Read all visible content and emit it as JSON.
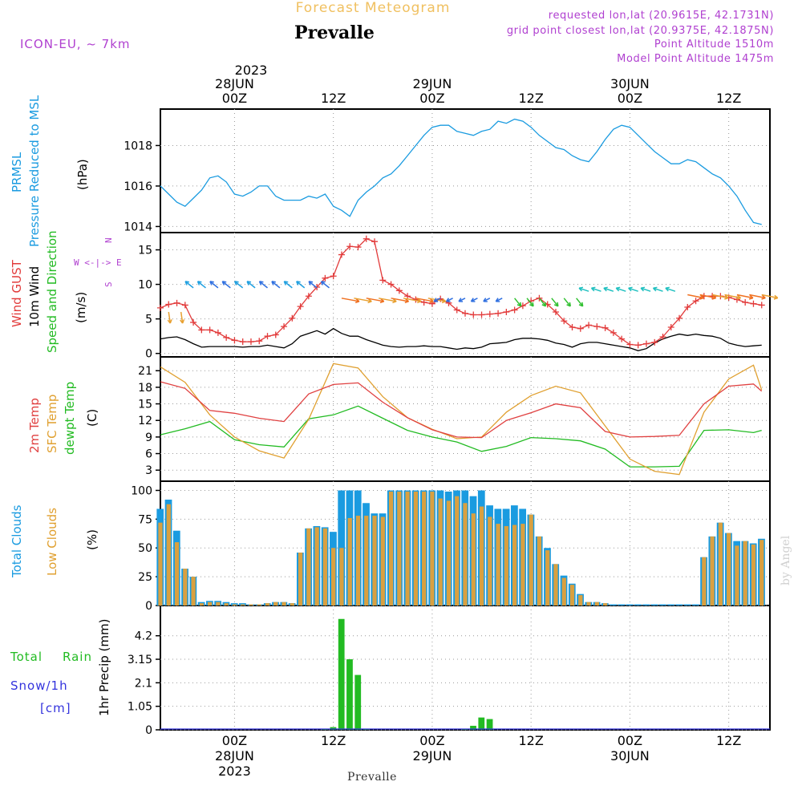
{
  "header": {
    "product": "Forecast Meteogram",
    "location": "Prevalle",
    "model": "ICON-EU, ~ 7km",
    "requested": "requested lon,lat (20.9615E, 42.1731N)",
    "grid_point": "grid point closest lon,lat (20.9375E, 42.1875N)",
    "point_alt": "Point Altitude 1510m",
    "model_alt": "Model Point Altitude 1475m",
    "footer_location": "Prevalle",
    "watermark": "by Angel"
  },
  "time_axis": {
    "top_year": "2023",
    "top_labels": [
      {
        "line1": "28JUN",
        "line2": "00Z"
      },
      {
        "line1": "",
        "line2": "12Z"
      },
      {
        "line1": "29JUN",
        "line2": "00Z"
      },
      {
        "line1": "",
        "line2": "12Z"
      },
      {
        "line1": "30JUN",
        "line2": "00Z"
      },
      {
        "line1": "",
        "line2": "12Z"
      }
    ],
    "bottom_labels": [
      {
        "line1": "00Z",
        "line2": "28JUN",
        "line3": "2023"
      },
      {
        "line1": "12Z",
        "line2": "",
        "line3": ""
      },
      {
        "line1": "00Z",
        "line2": "29JUN",
        "line3": ""
      },
      {
        "line1": "12Z",
        "line2": "",
        "line3": ""
      },
      {
        "line1": "00Z",
        "line2": "30JUN",
        "line3": ""
      },
      {
        "line1": "12Z",
        "line2": "",
        "line3": ""
      }
    ],
    "hours": [
      -9,
      65
    ]
  },
  "panel_labels": {
    "pressure": {
      "l1": "PRMSL",
      "l2": "Pressure Reduced to MSL",
      "unit": "(hPa)"
    },
    "wind": {
      "l1": "Wind GUST",
      "l2": "10m Wind",
      "l3": "Speed and Direction",
      "unit": "(m/s)",
      "compass": [
        "N",
        "W <-|-> E",
        "S"
      ]
    },
    "temp": {
      "l1": "2m Temp",
      "l2": "SFC Temp",
      "l3": "dewpt Temp",
      "unit": "(C)"
    },
    "clouds": {
      "l1": "Total Clouds",
      "l2": "Low Clouds",
      "unit": "(%)"
    },
    "precip": {
      "l1": "Total",
      "l1b": "Rain",
      "l2": "Snow/1h",
      "l3": "[cm]",
      "unit": "1hr Precip (mm)"
    }
  },
  "colors": {
    "pressure": "#1a9be0",
    "gust": "#e23b3b",
    "wind": "#000000",
    "t2m": "#e04040",
    "sfc": "#e0a030",
    "dew": "#22bb22",
    "total_clouds": "#1a9be0",
    "low_clouds": "#d9a040",
    "rain": "#22bb22",
    "snow": "#3333dd",
    "title_orange": "#f0c060",
    "meta_purple": "#b040d0"
  },
  "chart_data": [
    {
      "type": "line",
      "panel": "pressure",
      "ylim": [
        1013.7,
        1019.8
      ],
      "yticks": [
        "1014",
        "1016",
        "1018"
      ],
      "ytick_values": [
        1014,
        1016,
        1018
      ],
      "series": [
        {
          "name": "PRMSL",
          "x": [
            -9,
            -8,
            -7,
            -6,
            -5,
            -4,
            -3,
            -2,
            -1,
            0,
            1,
            2,
            3,
            4,
            5,
            6,
            7,
            8,
            9,
            10,
            11,
            12,
            13,
            14,
            15,
            16,
            17,
            18,
            19,
            20,
            21,
            22,
            23,
            24,
            25,
            26,
            27,
            28,
            29,
            30,
            31,
            32,
            33,
            34,
            35,
            36,
            37,
            38,
            39,
            40,
            41,
            42,
            43,
            44,
            45,
            46,
            47,
            48,
            49,
            50,
            51,
            52,
            53,
            54,
            55,
            56,
            57,
            58,
            59,
            60,
            61,
            62,
            63,
            64
          ],
          "values": [
            1016.0,
            1015.6,
            1015.2,
            1015.0,
            1015.4,
            1015.8,
            1016.4,
            1016.5,
            1016.2,
            1015.6,
            1015.5,
            1015.7,
            1016.0,
            1016.0,
            1015.5,
            1015.3,
            1015.3,
            1015.3,
            1015.5,
            1015.4,
            1015.6,
            1015.0,
            1014.8,
            1014.5,
            1015.3,
            1015.7,
            1016.0,
            1016.4,
            1016.6,
            1017.0,
            1017.5,
            1018.0,
            1018.5,
            1018.9,
            1019.0,
            1019.0,
            1018.7,
            1018.6,
            1018.5,
            1018.7,
            1018.8,
            1019.2,
            1019.1,
            1019.3,
            1019.2,
            1018.9,
            1018.5,
            1018.2,
            1017.9,
            1017.8,
            1017.5,
            1017.3,
            1017.2,
            1017.7,
            1018.3,
            1018.8,
            1019.0,
            1018.9,
            1018.5,
            1018.1,
            1017.7,
            1017.4,
            1017.1,
            1017.1,
            1017.3,
            1017.2,
            1016.9,
            1016.6,
            1016.4,
            1016.0,
            1015.5,
            1014.8,
            1014.2,
            1014.1
          ]
        }
      ]
    },
    {
      "type": "line",
      "panel": "wind",
      "ylim": [
        -0.5,
        17.5
      ],
      "yticks": [
        "0",
        "5",
        "10",
        "15"
      ],
      "ytick_values": [
        0,
        5,
        10,
        15
      ],
      "series": [
        {
          "name": "Wind GUST",
          "x": [
            -9,
            -8,
            -7,
            -6,
            -5,
            -4,
            -3,
            -2,
            -1,
            0,
            1,
            2,
            3,
            4,
            5,
            6,
            7,
            8,
            9,
            10,
            11,
            12,
            13,
            14,
            15,
            16,
            17,
            18,
            19,
            20,
            21,
            22,
            23,
            24,
            25,
            26,
            27,
            28,
            29,
            30,
            31,
            32,
            33,
            34,
            35,
            36,
            37,
            38,
            39,
            40,
            41,
            42,
            43,
            44,
            45,
            46,
            47,
            48,
            49,
            50,
            51,
            52,
            53,
            54,
            55,
            56,
            57,
            58,
            59,
            60,
            61,
            62,
            63,
            64
          ],
          "values": [
            6.6,
            7.1,
            7.3,
            7.0,
            4.5,
            3.4,
            3.4,
            3.0,
            2.3,
            1.9,
            1.7,
            1.7,
            1.8,
            2.5,
            2.7,
            3.9,
            5.1,
            6.8,
            8.3,
            9.6,
            10.9,
            11.2,
            14.3,
            15.5,
            15.4,
            16.6,
            16.2,
            10.6,
            10.0,
            9.1,
            8.3,
            7.8,
            7.4,
            7.2,
            7.9,
            7.3,
            6.3,
            5.8,
            5.6,
            5.6,
            5.7,
            5.8,
            6.0,
            6.3,
            6.9,
            7.6,
            8.0,
            7.1,
            6.0,
            4.7,
            3.8,
            3.6,
            4.1,
            3.9,
            3.7,
            3.0,
            2.1,
            1.3,
            1.2,
            1.4,
            1.6,
            2.4,
            3.8,
            5.1,
            6.7,
            7.6,
            8.3,
            8.3,
            8.3,
            8.1,
            7.8,
            7.4,
            7.2,
            7.0
          ]
        },
        {
          "name": "10m Wind",
          "x": [
            -9,
            -8,
            -7,
            -6,
            -5,
            -4,
            -3,
            -2,
            -1,
            0,
            1,
            2,
            3,
            4,
            5,
            6,
            7,
            8,
            9,
            10,
            11,
            12,
            13,
            14,
            15,
            16,
            17,
            18,
            19,
            20,
            21,
            22,
            23,
            24,
            25,
            26,
            27,
            28,
            29,
            30,
            31,
            32,
            33,
            34,
            35,
            36,
            37,
            38,
            39,
            40,
            41,
            42,
            43,
            44,
            45,
            46,
            47,
            48,
            49,
            50,
            51,
            52,
            53,
            54,
            55,
            56,
            57,
            58,
            59,
            60,
            61,
            62,
            63,
            64
          ],
          "values": [
            2.1,
            2.3,
            2.4,
            2.0,
            1.4,
            0.9,
            1.0,
            1.0,
            1.0,
            1.0,
            0.9,
            1.0,
            1.0,
            1.2,
            1.0,
            0.8,
            1.4,
            2.5,
            2.9,
            3.3,
            2.8,
            3.6,
            2.9,
            2.5,
            2.5,
            2.0,
            1.6,
            1.2,
            1.0,
            0.9,
            1.0,
            1.0,
            1.1,
            1.0,
            1.0,
            0.8,
            0.6,
            0.8,
            0.7,
            0.9,
            1.4,
            1.5,
            1.6,
            2.0,
            2.2,
            2.2,
            2.1,
            1.9,
            1.5,
            1.3,
            0.9,
            1.4,
            1.6,
            1.6,
            1.4,
            1.2,
            1.0,
            0.8,
            0.4,
            0.7,
            1.5,
            2.1,
            2.5,
            2.8,
            2.6,
            2.8,
            2.6,
            2.5,
            2.2,
            1.5,
            1.2,
            1.0,
            1.1,
            1.2
          ]
        }
      ]
    },
    {
      "type": "line",
      "panel": "temperature",
      "ylim": [
        1.0,
        23.5
      ],
      "yticks": [
        "3",
        "6",
        "9",
        "12",
        "15",
        "18",
        "21"
      ],
      "ytick_values": [
        3,
        6,
        9,
        12,
        15,
        18,
        21
      ],
      "series": [
        {
          "name": "2m Temp",
          "x": [
            -9,
            -6,
            -3,
            0,
            3,
            6,
            9,
            12,
            15,
            18,
            21,
            24,
            27,
            30,
            33,
            36,
            39,
            42,
            45,
            48,
            51,
            54,
            57,
            60,
            63,
            64
          ],
          "values": [
            19.0,
            17.8,
            13.8,
            13.3,
            12.4,
            11.8,
            16.8,
            18.5,
            18.8,
            15.3,
            12.5,
            10.3,
            9.0,
            8.9,
            12.0,
            13.4,
            15.0,
            14.3,
            10.0,
            9.0,
            9.1,
            9.3,
            15.0,
            18.2,
            18.6,
            17.3
          ]
        },
        {
          "name": "SFC Temp",
          "x": [
            -9,
            -6,
            -3,
            0,
            3,
            6,
            9,
            12,
            15,
            18,
            21,
            24,
            27,
            30,
            33,
            36,
            39,
            42,
            45,
            48,
            51,
            54,
            57,
            60,
            63,
            64
          ],
          "values": [
            21.7,
            18.9,
            13.0,
            9.0,
            6.5,
            5.2,
            12.2,
            22.3,
            21.5,
            16.3,
            12.5,
            10.4,
            8.7,
            9.0,
            13.5,
            16.5,
            18.2,
            17.0,
            11.0,
            5.0,
            2.8,
            2.2,
            13.5,
            19.5,
            22.0,
            17.5
          ]
        },
        {
          "name": "dewpt Temp",
          "x": [
            -9,
            -6,
            -3,
            0,
            3,
            6,
            9,
            12,
            15,
            18,
            21,
            24,
            27,
            30,
            33,
            36,
            39,
            42,
            45,
            48,
            51,
            54,
            57,
            60,
            63,
            64
          ],
          "values": [
            9.4,
            10.5,
            11.8,
            8.5,
            7.6,
            7.2,
            12.3,
            13.0,
            14.6,
            12.4,
            10.2,
            9.0,
            8.1,
            6.4,
            7.3,
            8.9,
            8.7,
            8.3,
            6.8,
            3.6,
            3.6,
            3.7,
            10.2,
            10.3,
            9.8,
            10.2
          ]
        }
      ]
    },
    {
      "type": "bar",
      "panel": "clouds",
      "ylim": [
        0,
        108
      ],
      "yticks": [
        "0",
        "25",
        "50",
        "75",
        "100"
      ],
      "ytick_values": [
        0,
        25,
        50,
        75,
        100
      ],
      "x": [
        -9,
        -8,
        -7,
        -6,
        -5,
        -4,
        -3,
        -2,
        -1,
        0,
        1,
        2,
        3,
        4,
        5,
        6,
        7,
        8,
        9,
        10,
        11,
        12,
        13,
        14,
        15,
        16,
        17,
        18,
        19,
        20,
        21,
        22,
        23,
        24,
        25,
        26,
        27,
        28,
        29,
        30,
        31,
        32,
        33,
        34,
        35,
        36,
        37,
        38,
        39,
        40,
        41,
        42,
        43,
        44,
        45,
        46,
        47,
        48,
        49,
        50,
        51,
        52,
        53,
        54,
        55,
        56,
        57,
        58,
        59,
        60,
        61,
        62,
        63,
        64
      ],
      "series": [
        {
          "name": "Total Clouds",
          "values": [
            84,
            92,
            65,
            32,
            25,
            3,
            4,
            4,
            3,
            2,
            2,
            1,
            1,
            2,
            3,
            3,
            2,
            46,
            67,
            69,
            68,
            64,
            100,
            100,
            100,
            89,
            80,
            80,
            100,
            100,
            100,
            100,
            100,
            100,
            100,
            99,
            100,
            100,
            95,
            100,
            87,
            84,
            84,
            87,
            84,
            79,
            60,
            50,
            36,
            26,
            19,
            10,
            3,
            3,
            2,
            1,
            1,
            1,
            1,
            1,
            1,
            1,
            1,
            1,
            1,
            1,
            42,
            60,
            72,
            63,
            56,
            56,
            54,
            58
          ]
        },
        {
          "name": "Low Clouds",
          "values": [
            72,
            88,
            55,
            32,
            25,
            2,
            3,
            3,
            2,
            1,
            1,
            1,
            1,
            2,
            3,
            3,
            2,
            46,
            67,
            68,
            67,
            50,
            50,
            76,
            78,
            78,
            78,
            77,
            99,
            99,
            99,
            99,
            99,
            99,
            93,
            91,
            95,
            89,
            80,
            86,
            77,
            71,
            69,
            70,
            71,
            79,
            60,
            48,
            36,
            24,
            18,
            9,
            3,
            3,
            2,
            0,
            0,
            0,
            0,
            0,
            0,
            0,
            0,
            0,
            0,
            0,
            42,
            60,
            72,
            63,
            52,
            56,
            53,
            57
          ]
        }
      ]
    },
    {
      "type": "bar",
      "panel": "precip",
      "ylim": [
        0,
        5.55
      ],
      "yticks": [
        "0",
        "1.05",
        "2.1",
        "3.15",
        "4.2"
      ],
      "ytick_values": [
        0,
        1.05,
        2.1,
        3.15,
        4.2
      ],
      "x": [
        11,
        12,
        13,
        14,
        15,
        16,
        28,
        29,
        30,
        31
      ],
      "series": [
        {
          "name": "Total Rain",
          "values": [
            0.03,
            0.12,
            4.95,
            3.15,
            2.45,
            0.05,
            0.04,
            0.18,
            0.55,
            0.48
          ]
        }
      ]
    }
  ]
}
